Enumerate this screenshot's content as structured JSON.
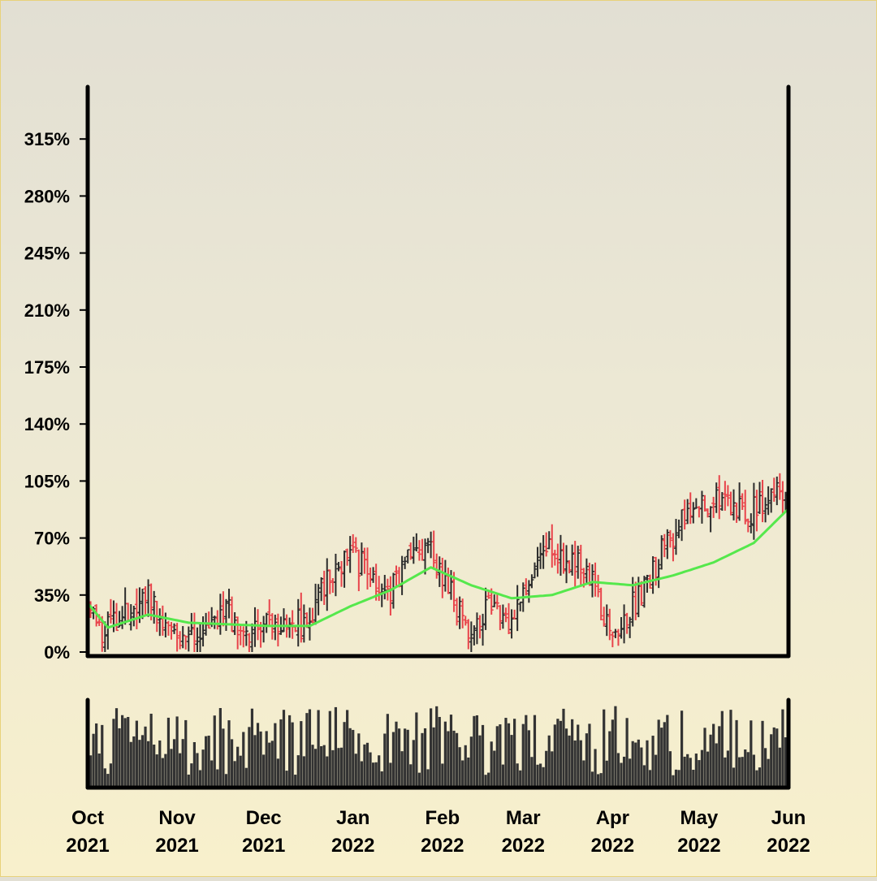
{
  "chart_data": {
    "type": "ohlc",
    "y_unit": "%",
    "ylim": [
      0,
      350
    ],
    "yticks": [
      "0%",
      "35%",
      "70%",
      "105%",
      "140%",
      "175%",
      "210%",
      "245%",
      "280%",
      "315%"
    ],
    "xticks": [
      {
        "date": "2021-10-01",
        "month": "Oct",
        "year": "2021"
      },
      {
        "date": "2021-11-01",
        "month": "Nov",
        "year": "2021"
      },
      {
        "date": "2021-12-01",
        "month": "Dec",
        "year": "2021"
      },
      {
        "date": "2022-01-01",
        "month": "Jan",
        "year": "2022"
      },
      {
        "date": "2022-02-01",
        "month": "Feb",
        "year": "2022"
      },
      {
        "date": "2022-03-01",
        "month": "Mar",
        "year": "2022"
      },
      {
        "date": "2022-04-01",
        "month": "Apr",
        "year": "2022"
      },
      {
        "date": "2022-05-01",
        "month": "May",
        "year": "2022"
      },
      {
        "date": "2022-06-01",
        "month": "Jun",
        "year": "2022"
      }
    ],
    "xlim": [
      "2021-10-01",
      "2022-06-01"
    ],
    "colors": {
      "up": "#2b2b2b",
      "down": "#e8434a",
      "moving_average": "#55e84c",
      "volume": "#333333",
      "axis": "#000000"
    },
    "price_trend": [
      [
        "2021-10-01",
        28
      ],
      [
        "2021-10-07",
        12
      ],
      [
        "2021-10-14",
        22
      ],
      [
        "2021-10-21",
        38
      ],
      [
        "2021-10-28",
        18
      ],
      [
        "2021-11-04",
        5
      ],
      [
        "2021-11-11",
        10
      ],
      [
        "2021-11-18",
        25
      ],
      [
        "2021-11-25",
        12
      ],
      [
        "2021-12-02",
        18
      ],
      [
        "2021-12-09",
        22
      ],
      [
        "2021-12-16",
        15
      ],
      [
        "2021-12-23",
        45
      ],
      [
        "2021-12-30",
        60
      ],
      [
        "2022-01-06",
        52
      ],
      [
        "2022-01-13",
        35
      ],
      [
        "2022-01-20",
        55
      ],
      [
        "2022-01-27",
        62
      ],
      [
        "2022-02-03",
        40
      ],
      [
        "2022-02-10",
        10
      ],
      [
        "2022-02-17",
        30
      ],
      [
        "2022-02-24",
        20
      ],
      [
        "2022-03-03",
        45
      ],
      [
        "2022-03-10",
        65
      ],
      [
        "2022-03-17",
        55
      ],
      [
        "2022-03-24",
        48
      ],
      [
        "2022-03-31",
        15
      ],
      [
        "2022-04-07",
        25
      ],
      [
        "2022-04-14",
        45
      ],
      [
        "2022-04-21",
        72
      ],
      [
        "2022-04-28",
        85
      ],
      [
        "2022-05-05",
        95
      ],
      [
        "2022-05-12",
        88
      ],
      [
        "2022-05-19",
        85
      ],
      [
        "2022-05-26",
        95
      ],
      [
        "2022-06-01",
        100
      ]
    ],
    "moving_average": [
      [
        "2021-10-01",
        30
      ],
      [
        "2021-10-08",
        15
      ],
      [
        "2021-10-22",
        23
      ],
      [
        "2021-11-05",
        18
      ],
      [
        "2021-11-19",
        17
      ],
      [
        "2021-12-03",
        16
      ],
      [
        "2021-12-17",
        16
      ],
      [
        "2021-12-31",
        28
      ],
      [
        "2022-01-14",
        38
      ],
      [
        "2022-01-28",
        52
      ],
      [
        "2022-02-11",
        41
      ],
      [
        "2022-02-25",
        33
      ],
      [
        "2022-03-11",
        35
      ],
      [
        "2022-03-25",
        43
      ],
      [
        "2022-04-08",
        41
      ],
      [
        "2022-04-22",
        47
      ],
      [
        "2022-05-06",
        55
      ],
      [
        "2022-05-20",
        67
      ],
      [
        "2022-06-01",
        88
      ]
    ]
  }
}
